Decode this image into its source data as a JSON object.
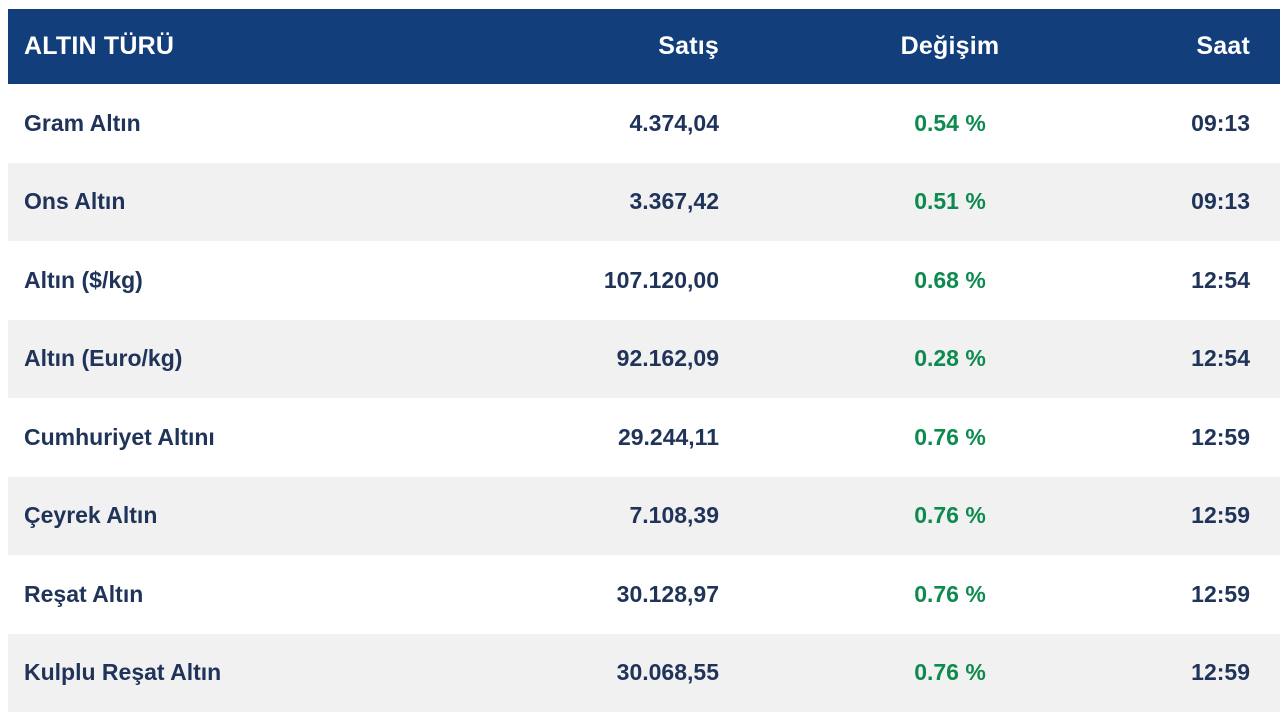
{
  "colors": {
    "header_bg": "#123e7c",
    "header_text": "#ffffff",
    "text_navy": "#20345a",
    "positive_green": "#0d8a4e",
    "stripe_gray": "#f2f1f2",
    "page_bg": "#ffffff"
  },
  "table": {
    "columns": [
      {
        "label": "ALTIN TÜRÜ",
        "align": "left"
      },
      {
        "label": "Satış",
        "align": "right"
      },
      {
        "label": "Değişim",
        "align": "center"
      },
      {
        "label": "Saat",
        "align": "right"
      }
    ],
    "rows": [
      {
        "name": "Gram Altın",
        "satis": "4.374,04",
        "degisim": "0.54 %",
        "saat": "09:13"
      },
      {
        "name": "Ons Altın",
        "satis": "3.367,42",
        "degisim": "0.51 %",
        "saat": "09:13"
      },
      {
        "name": "Altın ($/kg)",
        "satis": "107.120,00",
        "degisim": "0.68 %",
        "saat": "12:54"
      },
      {
        "name": "Altın (Euro/kg)",
        "satis": "92.162,09",
        "degisim": "0.28 %",
        "saat": "12:54"
      },
      {
        "name": "Cumhuriyet Altını",
        "satis": "29.244,11",
        "degisim": "0.76 %",
        "saat": "12:59"
      },
      {
        "name": "Çeyrek Altın",
        "satis": "7.108,39",
        "degisim": "0.76 %",
        "saat": "12:59"
      },
      {
        "name": "Reşat Altın",
        "satis": "30.128,97",
        "degisim": "0.76 %",
        "saat": "12:59"
      },
      {
        "name": "Kulplu Reşat Altın",
        "satis": "30.068,55",
        "degisim": "0.76 %",
        "saat": "12:59"
      }
    ]
  }
}
